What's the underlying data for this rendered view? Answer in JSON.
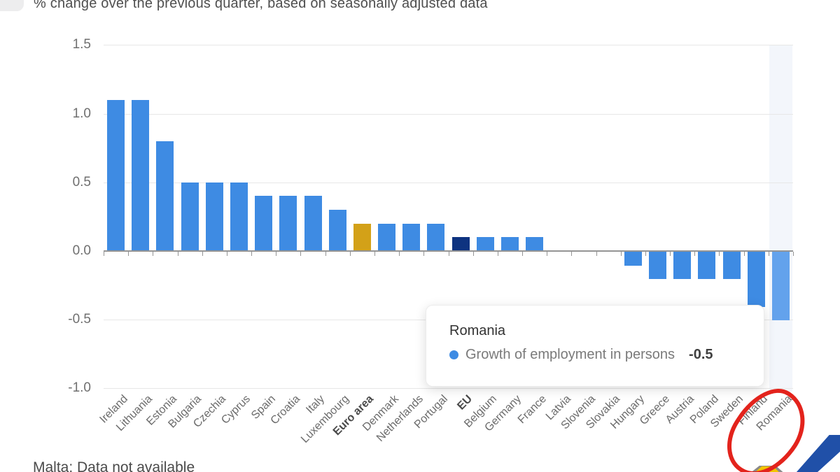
{
  "page": {
    "subtitle": "% change over the previous quarter, based on seasonally adjusted data",
    "footnote": "Malta: Data not available"
  },
  "colors": {
    "bar_default": "#3e8be3",
    "bar_euro_area": "#d3a118",
    "bar_eu": "#0e3380",
    "bar_highlight": "#63a2ec",
    "band": "#f3f6fb",
    "annotation_red": "#e3231c",
    "logo_blue": "#2050a8",
    "logo_yellow": "#f2c500"
  },
  "chart_data": {
    "type": "bar",
    "subtitle": "% change over the previous quarter, based on seasonally adjusted data",
    "series_name": "Growth of employment in persons",
    "categories": [
      "Ireland",
      "Lithuania",
      "Estonia",
      "Bulgaria",
      "Czechia",
      "Cyprus",
      "Spain",
      "Croatia",
      "Italy",
      "Luxembourg",
      "Euro area",
      "Denmark",
      "Netherlands",
      "Portugal",
      "EU",
      "Belgium",
      "Germany",
      "France",
      "Latvia",
      "Slovenia",
      "Slovakia",
      "Hungary",
      "Greece",
      "Austria",
      "Poland",
      "Sweden",
      "Finland",
      "Romania"
    ],
    "values": [
      1.1,
      1.1,
      0.8,
      0.5,
      0.5,
      0.5,
      0.4,
      0.4,
      0.4,
      0.3,
      0.2,
      0.2,
      0.2,
      0.2,
      0.1,
      0.1,
      0.1,
      0.1,
      0.0,
      0.0,
      0.0,
      -0.1,
      -0.2,
      -0.2,
      -0.2,
      -0.2,
      -0.4,
      -0.5
    ],
    "ylim": [
      -1.0,
      1.5
    ],
    "yticks": [
      "1.5",
      "1.0",
      "0.5",
      "0.0",
      "-0.5",
      "-1.0"
    ],
    "grid": true,
    "legend_position": "none",
    "bold_categories": [
      "Euro area",
      "EU"
    ],
    "special_colors": {
      "Euro area": "bar_euro_area",
      "EU": "bar_eu",
      "Romania": "bar_highlight"
    },
    "highlighted_category": "Romania",
    "footnote": "Malta: Data not available"
  },
  "tooltip": {
    "title": "Romania",
    "series_label": "Growth of employment in persons",
    "value": "-0.5"
  }
}
